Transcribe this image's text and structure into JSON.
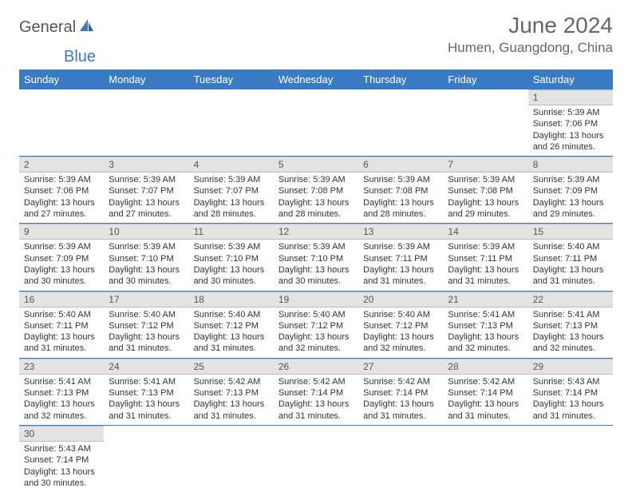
{
  "brand": {
    "general": "General",
    "blue": "Blue"
  },
  "title": "June 2024",
  "location": "Humen, Guangdong, China",
  "colors": {
    "header_bg": "#3a7bc4",
    "daynum_bg": "#e3e3e3",
    "text": "#333333",
    "title_text": "#666666"
  },
  "weekdays": [
    "Sunday",
    "Monday",
    "Tuesday",
    "Wednesday",
    "Thursday",
    "Friday",
    "Saturday"
  ],
  "days": {
    "1": {
      "sunrise": "5:39 AM",
      "sunset": "7:06 PM",
      "daylight": "13 hours and 26 minutes."
    },
    "2": {
      "sunrise": "5:39 AM",
      "sunset": "7:06 PM",
      "daylight": "13 hours and 27 minutes."
    },
    "3": {
      "sunrise": "5:39 AM",
      "sunset": "7:07 PM",
      "daylight": "13 hours and 27 minutes."
    },
    "4": {
      "sunrise": "5:39 AM",
      "sunset": "7:07 PM",
      "daylight": "13 hours and 28 minutes."
    },
    "5": {
      "sunrise": "5:39 AM",
      "sunset": "7:08 PM",
      "daylight": "13 hours and 28 minutes."
    },
    "6": {
      "sunrise": "5:39 AM",
      "sunset": "7:08 PM",
      "daylight": "13 hours and 28 minutes."
    },
    "7": {
      "sunrise": "5:39 AM",
      "sunset": "7:08 PM",
      "daylight": "13 hours and 29 minutes."
    },
    "8": {
      "sunrise": "5:39 AM",
      "sunset": "7:09 PM",
      "daylight": "13 hours and 29 minutes."
    },
    "9": {
      "sunrise": "5:39 AM",
      "sunset": "7:09 PM",
      "daylight": "13 hours and 30 minutes."
    },
    "10": {
      "sunrise": "5:39 AM",
      "sunset": "7:10 PM",
      "daylight": "13 hours and 30 minutes."
    },
    "11": {
      "sunrise": "5:39 AM",
      "sunset": "7:10 PM",
      "daylight": "13 hours and 30 minutes."
    },
    "12": {
      "sunrise": "5:39 AM",
      "sunset": "7:10 PM",
      "daylight": "13 hours and 30 minutes."
    },
    "13": {
      "sunrise": "5:39 AM",
      "sunset": "7:11 PM",
      "daylight": "13 hours and 31 minutes."
    },
    "14": {
      "sunrise": "5:39 AM",
      "sunset": "7:11 PM",
      "daylight": "13 hours and 31 minutes."
    },
    "15": {
      "sunrise": "5:40 AM",
      "sunset": "7:11 PM",
      "daylight": "13 hours and 31 minutes."
    },
    "16": {
      "sunrise": "5:40 AM",
      "sunset": "7:11 PM",
      "daylight": "13 hours and 31 minutes."
    },
    "17": {
      "sunrise": "5:40 AM",
      "sunset": "7:12 PM",
      "daylight": "13 hours and 31 minutes."
    },
    "18": {
      "sunrise": "5:40 AM",
      "sunset": "7:12 PM",
      "daylight": "13 hours and 31 minutes."
    },
    "19": {
      "sunrise": "5:40 AM",
      "sunset": "7:12 PM",
      "daylight": "13 hours and 32 minutes."
    },
    "20": {
      "sunrise": "5:40 AM",
      "sunset": "7:12 PM",
      "daylight": "13 hours and 32 minutes."
    },
    "21": {
      "sunrise": "5:41 AM",
      "sunset": "7:13 PM",
      "daylight": "13 hours and 32 minutes."
    },
    "22": {
      "sunrise": "5:41 AM",
      "sunset": "7:13 PM",
      "daylight": "13 hours and 32 minutes."
    },
    "23": {
      "sunrise": "5:41 AM",
      "sunset": "7:13 PM",
      "daylight": "13 hours and 32 minutes."
    },
    "24": {
      "sunrise": "5:41 AM",
      "sunset": "7:13 PM",
      "daylight": "13 hours and 31 minutes."
    },
    "25": {
      "sunrise": "5:42 AM",
      "sunset": "7:13 PM",
      "daylight": "13 hours and 31 minutes."
    },
    "26": {
      "sunrise": "5:42 AM",
      "sunset": "7:14 PM",
      "daylight": "13 hours and 31 minutes."
    },
    "27": {
      "sunrise": "5:42 AM",
      "sunset": "7:14 PM",
      "daylight": "13 hours and 31 minutes."
    },
    "28": {
      "sunrise": "5:42 AM",
      "sunset": "7:14 PM",
      "daylight": "13 hours and 31 minutes."
    },
    "29": {
      "sunrise": "5:43 AM",
      "sunset": "7:14 PM",
      "daylight": "13 hours and 31 minutes."
    },
    "30": {
      "sunrise": "5:43 AM",
      "sunset": "7:14 PM",
      "daylight": "13 hours and 30 minutes."
    }
  },
  "labels": {
    "sunrise": "Sunrise:",
    "sunset": "Sunset:",
    "daylight": "Daylight:"
  },
  "layout": {
    "first_weekday_index": 6,
    "num_days": 30,
    "columns": 7
  }
}
